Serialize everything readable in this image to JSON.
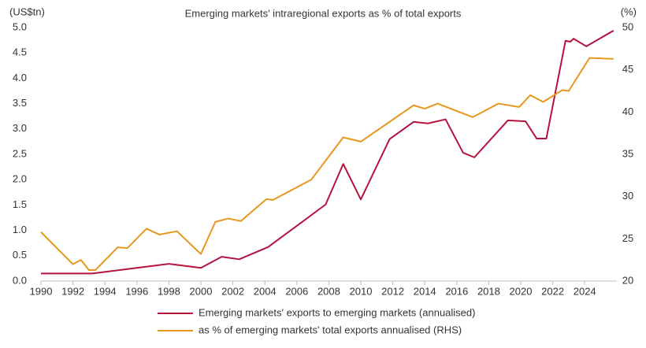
{
  "chart_data": {
    "type": "line",
    "title": "Emerging markets' intraregional exports as % of total exports",
    "y_label": "(US$tn)",
    "y2_label": "(%)",
    "xlim": [
      1990,
      2026
    ],
    "xticks": [
      1990,
      1992,
      1994,
      1996,
      1998,
      2000,
      2002,
      2004,
      2006,
      2008,
      2010,
      2012,
      2014,
      2016,
      2018,
      2020,
      2022,
      2024
    ],
    "ylim": [
      0,
      5
    ],
    "yticks": [
      {
        "value": 0,
        "label": "0.0"
      },
      {
        "value": 0.5,
        "label": "0.5"
      },
      {
        "value": 1,
        "label": "1.0"
      },
      {
        "value": 1.5,
        "label": "1.5"
      },
      {
        "value": 2,
        "label": "2.0"
      },
      {
        "value": 2.5,
        "label": "2.5"
      },
      {
        "value": 3,
        "label": "3.0"
      },
      {
        "value": 3.5,
        "label": "3.5"
      },
      {
        "value": 4,
        "label": "4.0"
      },
      {
        "value": 4.5,
        "label": "4.5"
      },
      {
        "value": 5,
        "label": "5.0"
      }
    ],
    "y2lim": [
      20,
      50
    ],
    "y2ticks": [
      20,
      25,
      30,
      35,
      40,
      45,
      50
    ],
    "grid": false,
    "legend": "bottom",
    "series": [
      {
        "name": "Emerging markets' exports to emerging markets (annualised)",
        "color": "#b5123e",
        "x": [
          1990,
          1993.2,
          1998,
          2000,
          2001.3,
          2002.4,
          2004.2,
          2007.8,
          2008.9,
          2010,
          2011.8,
          2013.3,
          2014.2,
          2015.3,
          2016.4,
          2017.1,
          2019.2,
          2020.3,
          2021,
          2021.6,
          2022.8,
          2023.1,
          2023.3,
          2024.1,
          2025.8
        ],
        "values": [
          0.15,
          0.15,
          0.34,
          0.26,
          0.48,
          0.43,
          0.67,
          1.51,
          2.31,
          1.61,
          2.8,
          3.14,
          3.11,
          3.19,
          2.53,
          2.44,
          3.17,
          3.15,
          2.81,
          2.81,
          4.74,
          4.72,
          4.78,
          4.63,
          4.94
        ]
      },
      {
        "name": "as % of emerging markets' total exports annualised (RHS)",
        "color": "#e8971e",
        "axis": "y2",
        "x": [
          1990,
          1992,
          1992.5,
          1993,
          1993.4,
          1994.8,
          1995.4,
          1996.6,
          1997.4,
          1998.5,
          2000,
          2000.9,
          2001.7,
          2002.5,
          2004.1,
          2004.5,
          2006.9,
          2008.9,
          2010,
          2013.3,
          2014,
          2014.8,
          2017,
          2018.6,
          2019.9,
          2020.6,
          2021.4,
          2022.6,
          2023,
          2024.3,
          2025.8
        ],
        "values": [
          25.8,
          22,
          22.5,
          21.3,
          21.3,
          24,
          23.9,
          26.2,
          25.5,
          25.9,
          23.2,
          27,
          27.4,
          27.1,
          29.7,
          29.6,
          32,
          37,
          36.5,
          40.8,
          40.4,
          41,
          39.4,
          41,
          40.6,
          42,
          41.2,
          42.6,
          42.5,
          46.4,
          46.3
        ]
      }
    ]
  }
}
